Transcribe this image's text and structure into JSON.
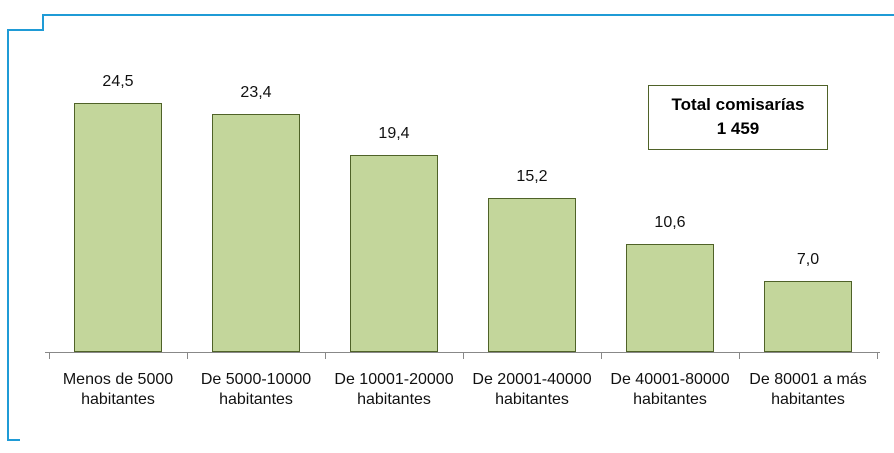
{
  "chart_data": {
    "type": "bar",
    "categories": [
      "Menos de 5000 habitantes",
      "De 5000-10000 habitantes",
      "De 10001-20000 habitantes",
      "De 20001-40000 habitantes",
      "De 40001-80000 habitantes",
      "De 80001 a más habitantes"
    ],
    "values": [
      24.5,
      23.4,
      19.4,
      15.2,
      10.6,
      7.0
    ],
    "value_labels": [
      "24,5",
      "23,4",
      "19,4",
      "15,2",
      "10,6",
      "7,0"
    ],
    "color": "#c3d69b",
    "annotation": [
      "Total comisarías",
      "1 459"
    ]
  }
}
